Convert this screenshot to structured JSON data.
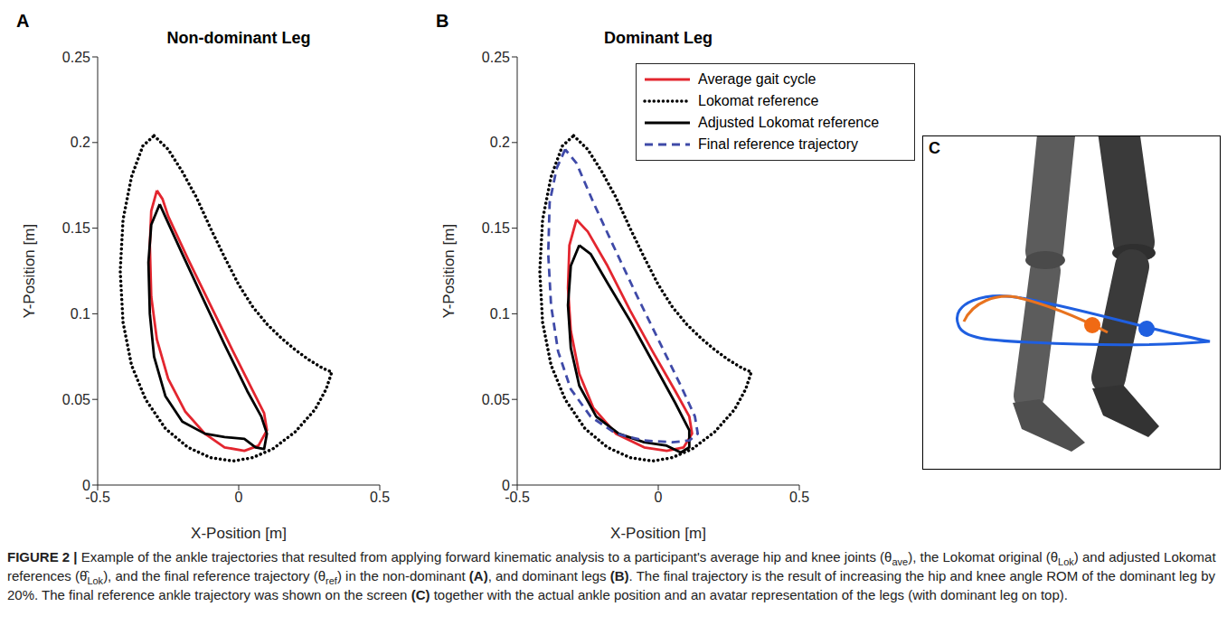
{
  "chart_data": [
    {
      "type": "line",
      "panel": "A",
      "title": "Non-dominant Leg",
      "xlabel": "X-Position [m]",
      "ylabel": "Y-Position [m]",
      "xlim": [
        -0.5,
        0.5
      ],
      "xticks": [
        -0.5,
        0,
        0.5
      ],
      "ylim": [
        0,
        0.25
      ],
      "yticks": [
        0,
        0.05,
        0.1,
        0.15,
        0.2,
        0.25
      ],
      "grid": false,
      "series": [
        {
          "name": "Lokomat reference",
          "color": "#000000",
          "line_style": "dotted",
          "x": [
            -0.3,
            -0.25,
            -0.2,
            -0.15,
            -0.1,
            -0.05,
            0,
            0.05,
            0.1,
            0.15,
            0.2,
            0.25,
            0.3,
            0.33,
            0.31,
            0.27,
            0.2,
            0.12,
            0.05,
            -0.02,
            -0.1,
            -0.18,
            -0.26,
            -0.33,
            -0.38,
            -0.41,
            -0.42,
            -0.41,
            -0.38,
            -0.34,
            -0.3
          ],
          "values": [
            0.204,
            0.196,
            0.183,
            0.168,
            0.15,
            0.133,
            0.117,
            0.104,
            0.094,
            0.086,
            0.079,
            0.073,
            0.068,
            0.066,
            0.056,
            0.044,
            0.031,
            0.021,
            0.016,
            0.014,
            0.016,
            0.022,
            0.033,
            0.05,
            0.07,
            0.095,
            0.125,
            0.155,
            0.18,
            0.198,
            0.204
          ]
        },
        {
          "name": "Average gait cycle",
          "color": "#e3262f",
          "line_style": "solid",
          "x": [
            -0.29,
            -0.31,
            -0.315,
            -0.31,
            -0.29,
            -0.25,
            -0.19,
            -0.12,
            -0.05,
            0.02,
            0.07,
            0.1,
            0.09,
            0.05,
            -0.02,
            -0.1,
            -0.18,
            -0.25,
            -0.27,
            -0.29
          ],
          "values": [
            0.172,
            0.16,
            0.14,
            0.11,
            0.085,
            0.062,
            0.043,
            0.03,
            0.022,
            0.02,
            0.023,
            0.032,
            0.042,
            0.055,
            0.078,
            0.105,
            0.132,
            0.157,
            0.167,
            0.172
          ]
        },
        {
          "name": "Adjusted Lokomat reference",
          "color": "#000000",
          "line_style": "solid",
          "x": [
            -0.28,
            -0.31,
            -0.32,
            -0.315,
            -0.3,
            -0.26,
            -0.2,
            -0.12,
            -0.05,
            0.02,
            0.06,
            0.09,
            0.1,
            0.08,
            0.03,
            -0.05,
            -0.13,
            -0.2,
            -0.25,
            -0.28
          ],
          "values": [
            0.164,
            0.152,
            0.13,
            0.1,
            0.075,
            0.052,
            0.037,
            0.03,
            0.028,
            0.027,
            0.022,
            0.021,
            0.03,
            0.04,
            0.055,
            0.082,
            0.11,
            0.135,
            0.153,
            0.164
          ]
        }
      ]
    },
    {
      "type": "line",
      "panel": "B",
      "title": "Dominant Leg",
      "xlabel": "X-Position [m]",
      "ylabel": "Y-Position [m]",
      "xlim": [
        -0.5,
        0.5
      ],
      "xticks": [
        -0.5,
        0,
        0.5
      ],
      "ylim": [
        0,
        0.25
      ],
      "yticks": [
        0,
        0.05,
        0.1,
        0.15,
        0.2,
        0.25
      ],
      "grid": false,
      "legend": "upper right",
      "series": [
        {
          "name": "Average gait cycle",
          "color": "#e3262f",
          "line_style": "solid",
          "x": [
            -0.29,
            -0.315,
            -0.32,
            -0.31,
            -0.28,
            -0.23,
            -0.15,
            -0.05,
            0.03,
            0.09,
            0.12,
            0.11,
            0.06,
            -0.02,
            -0.1,
            -0.18,
            -0.25,
            -0.29
          ],
          "values": [
            0.155,
            0.14,
            0.115,
            0.09,
            0.065,
            0.045,
            0.03,
            0.022,
            0.02,
            0.022,
            0.03,
            0.04,
            0.055,
            0.078,
            0.102,
            0.128,
            0.148,
            0.155
          ]
        },
        {
          "name": "Lokomat reference",
          "color": "#000000",
          "line_style": "dotted",
          "x": [
            -0.3,
            -0.25,
            -0.2,
            -0.15,
            -0.1,
            -0.05,
            0,
            0.05,
            0.1,
            0.15,
            0.2,
            0.25,
            0.3,
            0.33,
            0.31,
            0.27,
            0.2,
            0.12,
            0.05,
            -0.02,
            -0.1,
            -0.18,
            -0.26,
            -0.33,
            -0.38,
            -0.41,
            -0.42,
            -0.41,
            -0.38,
            -0.34,
            -0.3
          ],
          "values": [
            0.204,
            0.196,
            0.183,
            0.168,
            0.15,
            0.133,
            0.117,
            0.104,
            0.094,
            0.086,
            0.079,
            0.073,
            0.068,
            0.066,
            0.056,
            0.044,
            0.031,
            0.021,
            0.016,
            0.014,
            0.016,
            0.022,
            0.033,
            0.05,
            0.07,
            0.095,
            0.125,
            0.155,
            0.18,
            0.198,
            0.204
          ]
        },
        {
          "name": "Adjusted Lokomat reference",
          "color": "#000000",
          "line_style": "solid",
          "x": [
            -0.28,
            -0.31,
            -0.32,
            -0.31,
            -0.28,
            -0.22,
            -0.14,
            -0.05,
            0.03,
            0.08,
            0.11,
            0.11,
            0.06,
            -0.02,
            -0.1,
            -0.18,
            -0.24,
            -0.28
          ],
          "values": [
            0.14,
            0.128,
            0.105,
            0.08,
            0.058,
            0.04,
            0.03,
            0.025,
            0.023,
            0.019,
            0.022,
            0.032,
            0.048,
            0.072,
            0.096,
            0.118,
            0.135,
            0.14
          ]
        },
        {
          "name": "Final reference trajectory",
          "color": "#3f4aa8",
          "line_style": "dashed",
          "x": [
            -0.33,
            -0.36,
            -0.385,
            -0.39,
            -0.38,
            -0.355,
            -0.31,
            -0.24,
            -0.15,
            -0.05,
            0.05,
            0.11,
            0.14,
            0.13,
            0.08,
            0,
            -0.08,
            -0.16,
            -0.23,
            -0.29,
            -0.33
          ],
          "values": [
            0.196,
            0.185,
            0.165,
            0.135,
            0.105,
            0.078,
            0.056,
            0.04,
            0.03,
            0.026,
            0.025,
            0.026,
            0.03,
            0.04,
            0.058,
            0.085,
            0.112,
            0.14,
            0.165,
            0.188,
            0.196
          ]
        }
      ]
    }
  ],
  "panel_c": {
    "label": "C"
  },
  "caption": [
    {
      "text": "FIGURE 2 | ",
      "style": "bold"
    },
    {
      "text": "Example of the ankle trajectories that resulted from applying forward kinematic analysis to a participant's average hip and knee joints (θ",
      "style": "normal"
    },
    {
      "text": "ave",
      "style": "sub"
    },
    {
      "text": "), the Lokomat original (θ",
      "style": "normal"
    },
    {
      "text": "Lok",
      "style": "sub"
    },
    {
      "text": ") and adjusted Lokomat references (θ̂",
      "style": "normal"
    },
    {
      "text": "Lok",
      "style": "sub"
    },
    {
      "text": "), and the final reference trajectory (θ",
      "style": "normal"
    },
    {
      "text": "ref",
      "style": "sub"
    },
    {
      "text": ") in the non-dominant ",
      "style": "normal"
    },
    {
      "text": "(A)",
      "style": "bold"
    },
    {
      "text": ", and dominant legs ",
      "style": "normal"
    },
    {
      "text": "(B)",
      "style": "bold"
    },
    {
      "text": ". The final trajectory is the result of increasing the hip and knee angle ROM of the dominant leg by 20%. The final reference ankle trajectory was shown on the screen ",
      "style": "normal"
    },
    {
      "text": "(C)",
      "style": "bold"
    },
    {
      "text": " together with the actual ankle position and an avatar representation of the legs (with dominant leg on top).",
      "style": "normal"
    }
  ]
}
